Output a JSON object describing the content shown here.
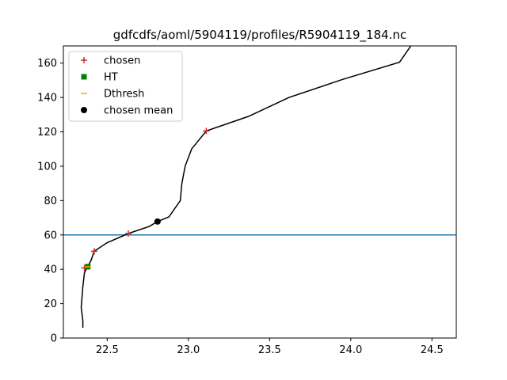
{
  "chart_data": {
    "type": "line",
    "title": "gdfcdfs/aoml/5904119/profiles/R5904119_184.nc",
    "xlabel": "",
    "ylabel": "",
    "xlim": [
      22.23,
      24.65
    ],
    "ylim": [
      0,
      170
    ],
    "xticks": [
      "22.5",
      "23.0",
      "23.5",
      "24.0",
      "24.5"
    ],
    "yticks": [
      "0",
      "20",
      "40",
      "60",
      "80",
      "100",
      "120",
      "140",
      "160"
    ],
    "grid": false,
    "legend_position": "top-left",
    "hline": {
      "y": 60,
      "color": "#1f77b4"
    },
    "profile": {
      "color": "#000000",
      "x": [
        22.35,
        22.35,
        22.34,
        22.35,
        22.36,
        22.38,
        22.4,
        22.42,
        22.5,
        22.63,
        22.76,
        22.81,
        22.88,
        22.95,
        22.96,
        22.98,
        23.0,
        23.02,
        23.11,
        23.37,
        23.62,
        23.95,
        24.3,
        24.37,
        24.45
      ],
      "y": [
        6,
        10,
        18,
        30,
        38,
        41.5,
        45,
        50.5,
        55.5,
        60.8,
        65,
        67.8,
        70.5,
        80,
        90,
        100,
        105,
        110,
        120.5,
        129,
        140,
        150.5,
        160.5,
        170,
        180
      ]
    },
    "series": [
      {
        "name": "chosen",
        "marker": "plus",
        "color": "#d62728",
        "x": [
          22.36,
          22.42,
          22.63,
          23.11
        ],
        "y": [
          40.8,
          50.5,
          60.8,
          120.5
        ]
      },
      {
        "name": "HT",
        "marker": "square",
        "color": "#008000",
        "x": [
          22.38
        ],
        "y": [
          41.5
        ]
      },
      {
        "name": "Dthresh",
        "marker": "hline",
        "color": "#ffa500",
        "x": [
          22.38
        ],
        "y": [
          41.5
        ]
      },
      {
        "name": "chosen mean",
        "marker": "circle",
        "color": "#000000",
        "x": [
          22.81
        ],
        "y": [
          67.8
        ]
      }
    ]
  }
}
